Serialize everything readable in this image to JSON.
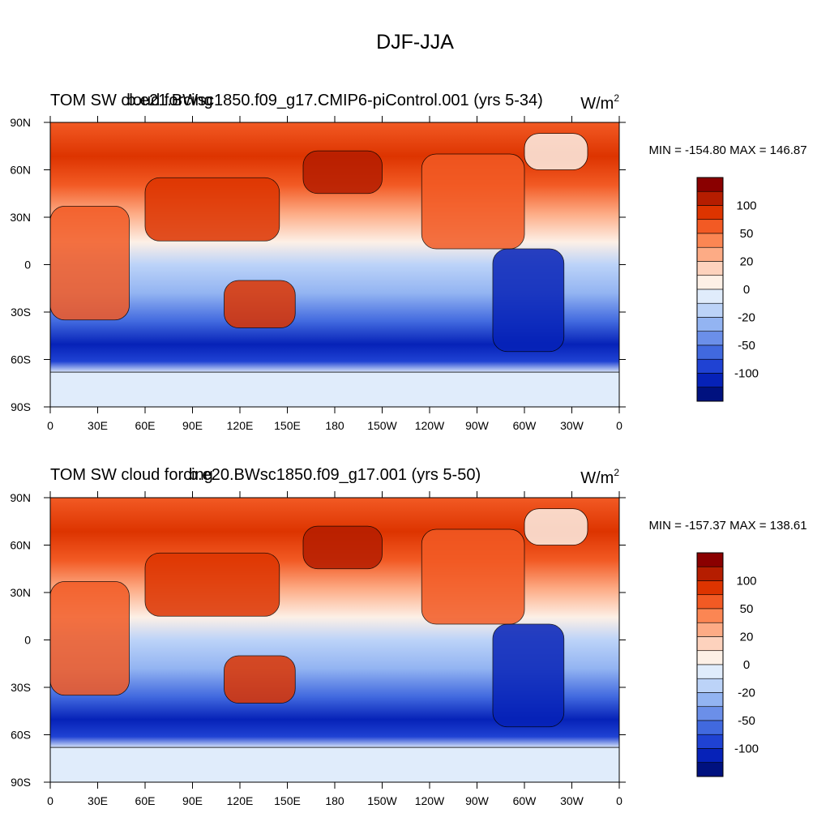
{
  "figure_title": "DJF-JJA",
  "chart_data": [
    {
      "type": "heatmap",
      "title_left": "TOM SW cloud forcing",
      "title_center": "b.e21.BWsc1850.f09_g17.CMIP6-piControl.001 (yrs 5-34)",
      "units": "W/m",
      "units_sup": "2",
      "stats": "MIN = -154.80 MAX = 146.87",
      "min": -154.8,
      "max": 146.87,
      "xticks": [
        "0",
        "30E",
        "60E",
        "90E",
        "120E",
        "150E",
        "180",
        "150W",
        "120W",
        "90W",
        "60W",
        "30W",
        "0"
      ],
      "yticks": [
        "90N",
        "60N",
        "30N",
        "0",
        "30S",
        "60S",
        "90S"
      ],
      "xlim": [
        0,
        360
      ],
      "ylim": [
        -90,
        90
      ],
      "colorbar_labels": [
        "100",
        "50",
        "20",
        "0",
        "-20",
        "-50",
        "-100"
      ]
    },
    {
      "type": "heatmap",
      "title_left": "TOM SW cloud forcing",
      "title_center": "b.e20.BWsc1850.f09_g17.001 (yrs 5-50)",
      "units": "W/m",
      "units_sup": "2",
      "stats": "MIN = -157.37 MAX = 138.61",
      "min": -157.37,
      "max": 138.61,
      "xticks": [
        "0",
        "30E",
        "60E",
        "90E",
        "120E",
        "150E",
        "180",
        "150W",
        "120W",
        "90W",
        "60W",
        "30W",
        "0"
      ],
      "yticks": [
        "90N",
        "60N",
        "30N",
        "0",
        "30S",
        "60S",
        "90S"
      ],
      "xlim": [
        0,
        360
      ],
      "ylim": [
        -90,
        90
      ],
      "colorbar_labels": [
        "100",
        "50",
        "20",
        "0",
        "-20",
        "-50",
        "-100"
      ]
    }
  ],
  "colorbar_colors": [
    "#8a0000",
    "#b51d00",
    "#dd3400",
    "#f25a24",
    "#fb8653",
    "#fdab85",
    "#fdd2bd",
    "#fdf0e6",
    "#e0ecfb",
    "#bcd3f8",
    "#93b4f2",
    "#6b8fe9",
    "#4169df",
    "#1f42d3",
    "#0622b8",
    "#00117f"
  ]
}
